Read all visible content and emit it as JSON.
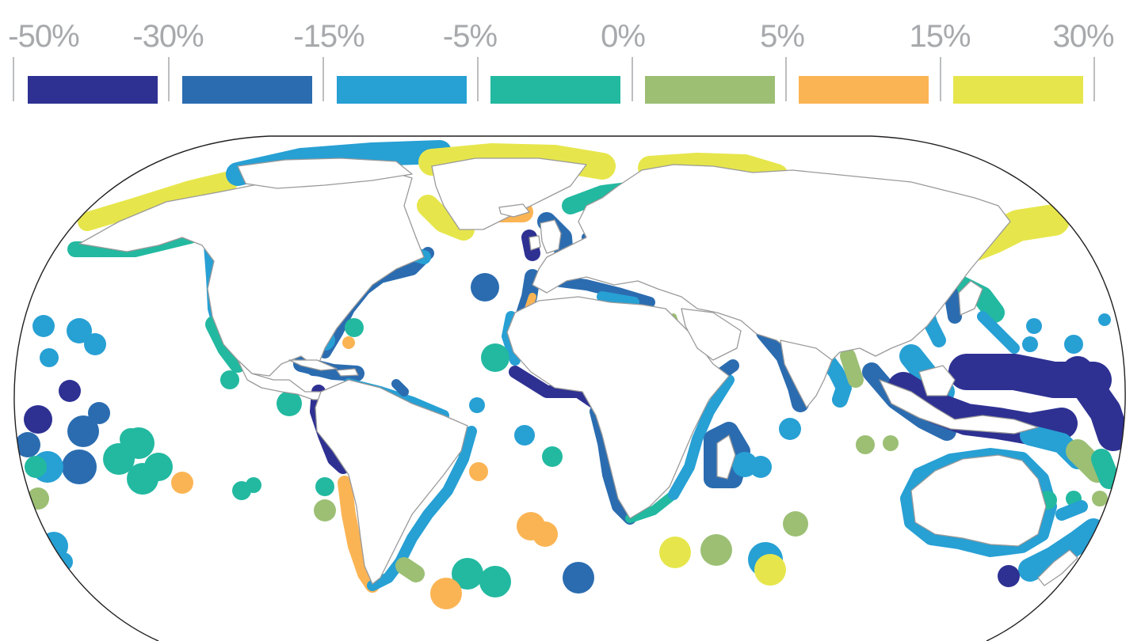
{
  "legend": {
    "ticks": [
      "-50%",
      "-30%",
      "-15%",
      "-5%",
      "0%",
      "5%",
      "15%",
      "30%"
    ],
    "bins": [
      {
        "from": "-50%",
        "to": "-30%",
        "color": "#2e3192"
      },
      {
        "from": "-30%",
        "to": "-15%",
        "color": "#2b6cb0"
      },
      {
        "from": "-15%",
        "to": "-5%",
        "color": "#27a0d4"
      },
      {
        "from": "-5%",
        "to": "0%",
        "color": "#22b9a0"
      },
      {
        "from": "0%",
        "to": "5%",
        "color": "#9cbf74"
      },
      {
        "from": "5%",
        "to": "15%",
        "color": "#fbb454"
      },
      {
        "from": "15%",
        "to": "30%",
        "color": "#e6e64c"
      }
    ]
  },
  "map": {
    "projection": "robinson",
    "land_color": "#ffffff",
    "border_color": "#9a9a9a",
    "outline_color": "#231f20"
  }
}
